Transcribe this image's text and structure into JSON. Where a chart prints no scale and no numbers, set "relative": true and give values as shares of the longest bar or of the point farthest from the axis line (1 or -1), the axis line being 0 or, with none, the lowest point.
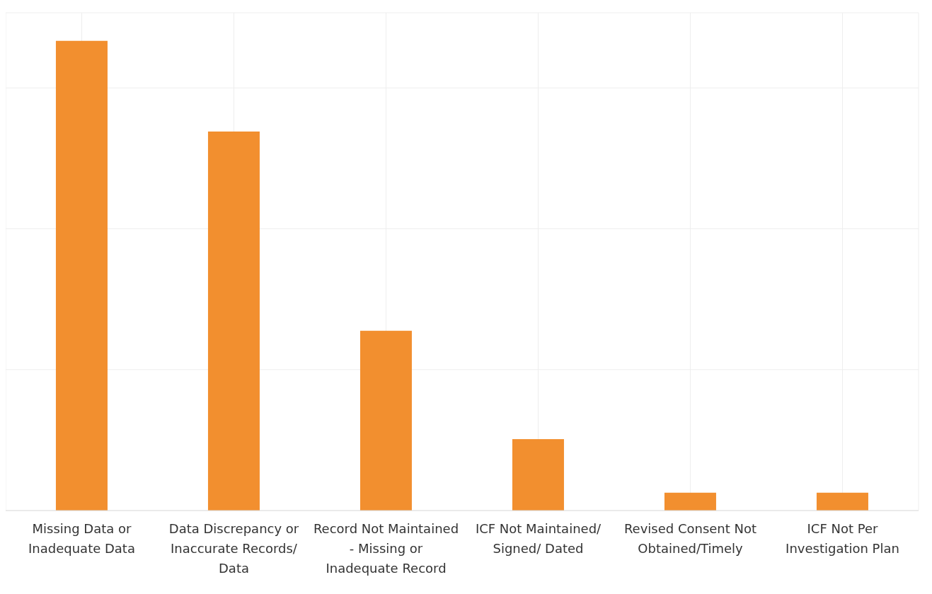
{
  "chart_data": {
    "type": "bar",
    "relative": true,
    "grid": true,
    "categories": [
      "Missing Data or Inadequate Data",
      "Data Discrepancy or Inaccurate Records/ Data",
      "Record Not Maintained - Missing or Inadequate Record",
      "ICF Not Maintained/ Signed/ Dated",
      "Revised Consent Not Obtained/Timely",
      "ICF Not Per Investigation Plan"
    ],
    "values": [
      1,
      0.807,
      0.383,
      0.152,
      0.038,
      0.038
    ],
    "color": "#f28f2f"
  }
}
